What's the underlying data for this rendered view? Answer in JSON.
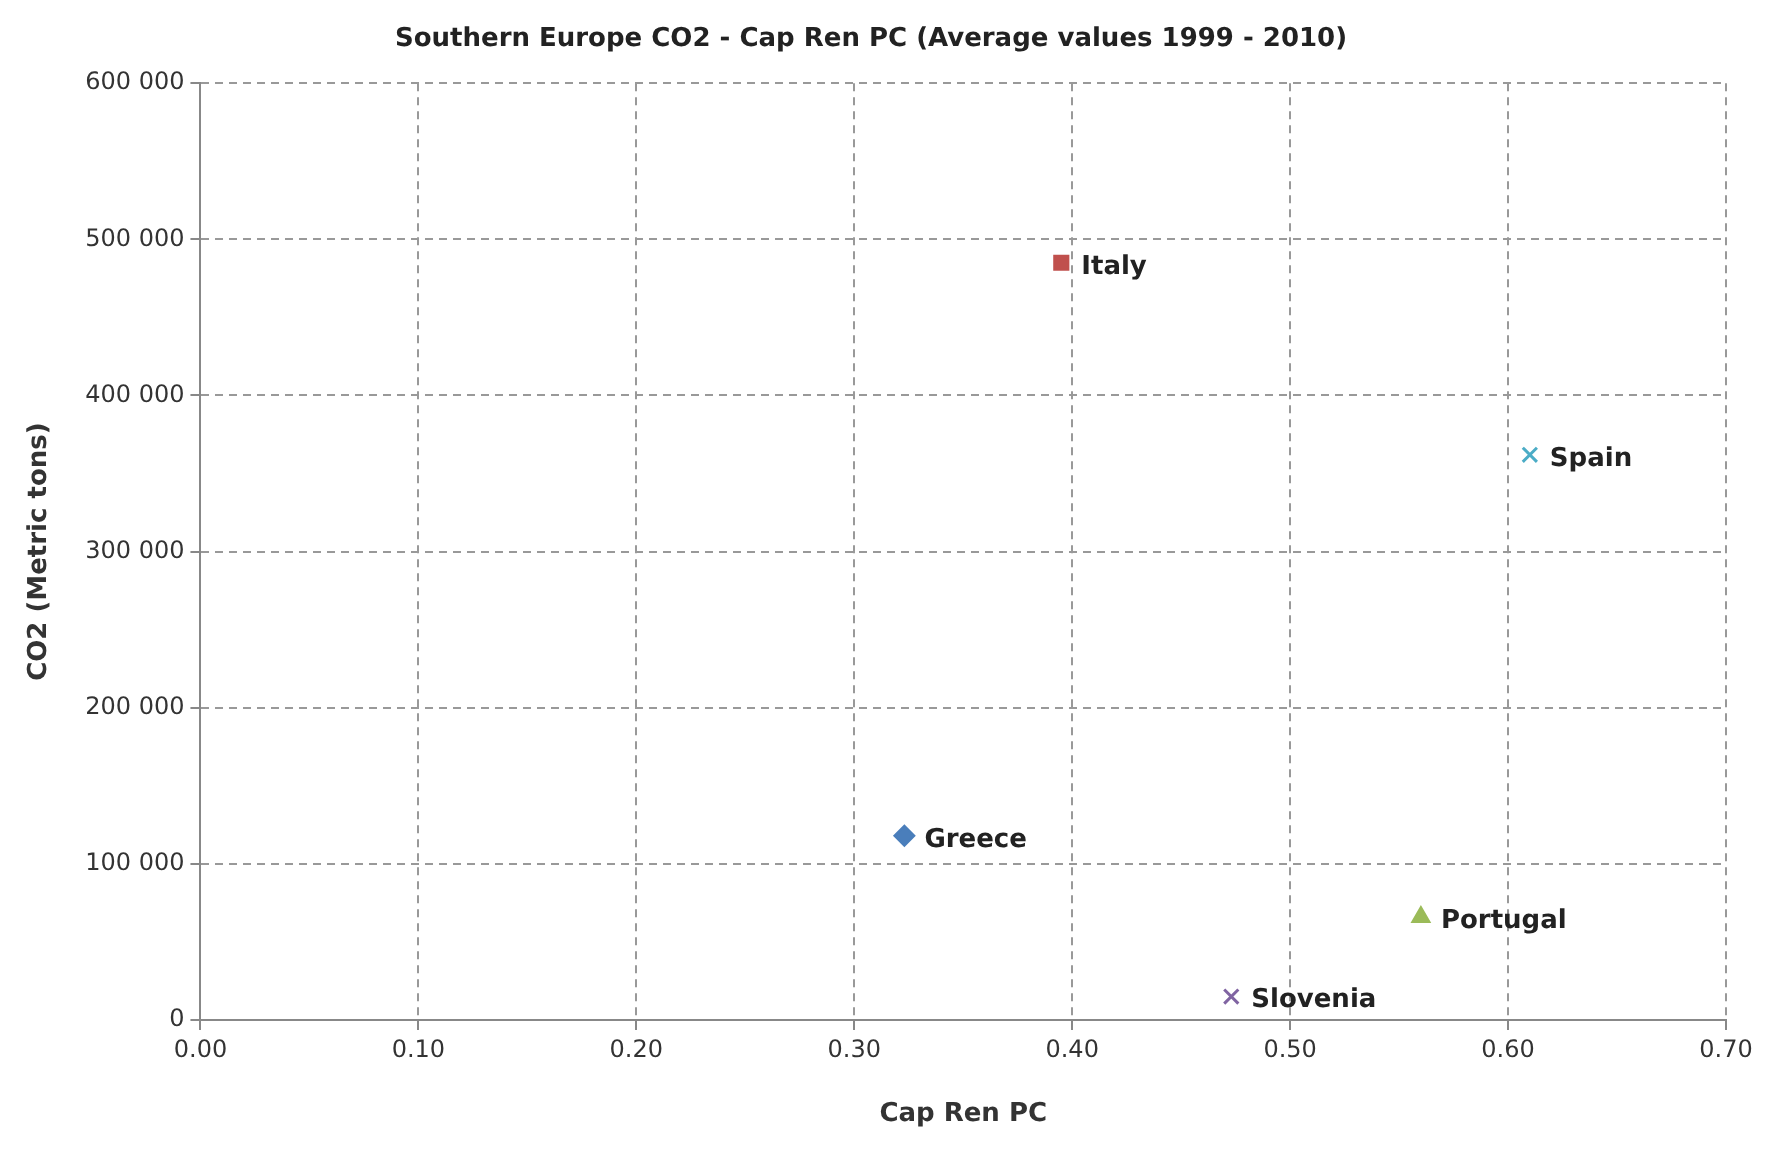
{
  "chart_data": {
    "type": "scatter",
    "title": "Southern Europe CO2 - Cap Ren PC (Average values 1999 - 2010)",
    "xlabel": "Cap Ren PC",
    "ylabel": "CO2 (Metric tons)",
    "series": [
      {
        "name": "Greece",
        "color": "#4a7ebb",
        "marker": "diamond",
        "x": [
          0.323
        ],
        "values": [
          118000
        ]
      },
      {
        "name": "Italy",
        "color": "#c0504d",
        "marker": "square",
        "x": [
          0.395
        ],
        "values": [
          485000
        ]
      },
      {
        "name": "Spain",
        "color": "#4bacc6",
        "marker": "cross",
        "x": [
          0.61
        ],
        "values": [
          362000
        ]
      },
      {
        "name": "Portugal",
        "color": "#9bbb59",
        "marker": "triangle",
        "x": [
          0.56
        ],
        "values": [
          66000
        ]
      },
      {
        "name": "Slovenia",
        "color": "#8064a2",
        "marker": "cross",
        "x": [
          0.473
        ],
        "values": [
          15000
        ]
      }
    ],
    "xlim": [
      0,
      0.7
    ],
    "xticks": [
      {
        "value": 0,
        "label": "0.00"
      },
      {
        "value": 0.1,
        "label": "0.10"
      },
      {
        "value": 0.2,
        "label": "0.20"
      },
      {
        "value": 0.3,
        "label": "0.30"
      },
      {
        "value": 0.4,
        "label": "0.40"
      },
      {
        "value": 0.5,
        "label": "0.50"
      },
      {
        "value": 0.6,
        "label": "0.60"
      },
      {
        "value": 0.7,
        "label": "0.70"
      }
    ],
    "ylim": [
      0,
      600000
    ],
    "yticks": [
      {
        "value": 0,
        "label": "0"
      },
      {
        "value": 100000,
        "label": "100 000"
      },
      {
        "value": 200000,
        "label": "200 000"
      },
      {
        "value": 300000,
        "label": "300 000"
      },
      {
        "value": 400000,
        "label": "400 000"
      },
      {
        "value": 500000,
        "label": "500 000"
      },
      {
        "value": 600000,
        "label": "600 000"
      }
    ],
    "grid": true,
    "legend": false
  }
}
